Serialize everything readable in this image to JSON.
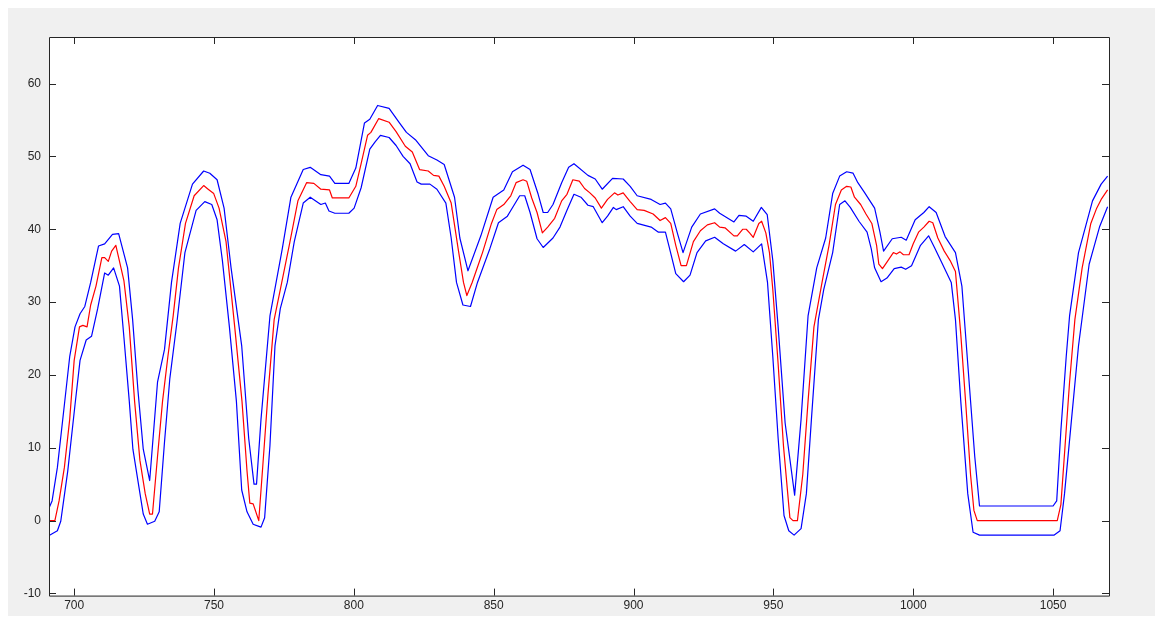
{
  "chart_data": {
    "type": "line",
    "xlim": [
      691,
      1070
    ],
    "ylim": [
      -10.3,
      66.4
    ],
    "xticks": [
      700,
      750,
      800,
      850,
      900,
      950,
      1000,
      1050
    ],
    "yticks": [
      -10,
      0,
      10,
      20,
      30,
      40,
      50,
      60
    ],
    "marker": "none",
    "series": [
      {
        "color": "#ff0000",
        "x": [
          691.2,
          693.1,
          694.6,
          696.5,
          698.4,
          700,
          701.9,
          703.1,
          704.6,
          705.9,
          707.8,
          709.9,
          710.9,
          712.2,
          713.4,
          714.9,
          717.8,
          719.7,
          721.6,
          723.5,
          725.4,
          727,
          728,
          729.8,
          731.6,
          733.5,
          735.4,
          737.3,
          739.8,
          742.9,
          746.3,
          747.9,
          749.9,
          751.8,
          754.3,
          757.4,
          760,
          761.8,
          762.8,
          764,
          766,
          767.4,
          769.3,
          771.5,
          773.7,
          776.9,
          780,
          783.1,
          785.7,
          788.2,
          791.3,
          792.3,
          798.2,
          800.7,
          802.6,
          804.9,
          806.1,
          808.9,
          812.6,
          815.1,
          818.4,
          820.9,
          823.5,
          826.6,
          828.5,
          830.4,
          832.3,
          834.8,
          837.3,
          839.2,
          840.4,
          842.3,
          846,
          849.2,
          851.1,
          853.6,
          856.1,
          858,
          860.5,
          861.8,
          863.6,
          865.5,
          867.4,
          869.3,
          871.8,
          874.3,
          876.2,
          878.3,
          880.6,
          882.5,
          884.4,
          886.3,
          888.5,
          890.7,
          893.2,
          894.4,
          896.3,
          898.8,
          901.3,
          903.8,
          907,
          909.5,
          911.4,
          913.3,
          915.1,
          917,
          918.9,
          921.4,
          923.9,
          926.4,
          929,
          930.8,
          932.7,
          935.9,
          937.1,
          939,
          940.3,
          941.5,
          942.8,
          944.8,
          945.8,
          947.3,
          948.6,
          949.8,
          951.7,
          953.6,
          955.9,
          957,
          958.6,
          960.5,
          962.4,
          964.5,
          967.4,
          969.9,
          972.2,
          974.3,
          976.2,
          977.7,
          979,
          981.2,
          983.1,
          985.2,
          986.9,
          987.7,
          989,
          990.6,
          992.9,
          994,
          995.3,
          996.5,
          998.5,
          1000,
          1001.9,
          1003.8,
          1005.7,
          1007,
          1008.8,
          1011.1,
          1013.2,
          1015.1,
          1017,
          1018.9,
          1020.5,
          1021.7,
          1022.9,
          1051.5,
          1052.8,
          1054.3,
          1055.9,
          1057.8,
          1060.4,
          1063.5,
          1065.6,
          1067.2,
          1069.5
        ],
        "values": [
          0,
          0,
          2.7,
          7.3,
          13.9,
          22,
          26.6,
          26.8,
          26.6,
          29.6,
          32.2,
          36.1,
          36.1,
          35.6,
          37,
          37.8,
          32.9,
          26.6,
          16.4,
          8.3,
          3.7,
          0.9,
          0.9,
          8.8,
          16.4,
          22.5,
          28.1,
          34.7,
          40.8,
          44.6,
          46,
          45.5,
          44.9,
          42.9,
          38.3,
          26.6,
          16.4,
          6.8,
          2.4,
          2.3,
          0,
          7.3,
          17.4,
          27.6,
          31.7,
          37.8,
          43.9,
          46.4,
          46.3,
          45.5,
          45.4,
          44.3,
          44.3,
          45.9,
          49,
          52.9,
          53.3,
          55.2,
          54.7,
          53.4,
          51.4,
          50.6,
          48.2,
          48,
          47.4,
          47.3,
          45.9,
          43.6,
          37.3,
          32.7,
          30.9,
          32.7,
          36.8,
          40.8,
          42.7,
          43.4,
          44.6,
          46.4,
          46.8,
          46.6,
          44.3,
          42.3,
          39.5,
          40.3,
          41.5,
          43.9,
          44.8,
          46.8,
          46.6,
          45.6,
          45,
          44.3,
          42.9,
          44.1,
          45,
          44.7,
          45,
          43.8,
          42.7,
          42.6,
          42.1,
          41.2,
          41.6,
          40.8,
          37.8,
          35,
          35,
          38.3,
          39.8,
          40.6,
          40.9,
          40.3,
          40.2,
          39.1,
          39.1,
          40,
          40,
          39.5,
          38.9,
          40.8,
          41.1,
          39.5,
          36.8,
          31.7,
          21.5,
          10.3,
          0.4,
          0,
          0,
          6.3,
          16.4,
          26.6,
          32.7,
          37.8,
          43.4,
          45.4,
          45.9,
          45.8,
          44.4,
          43.4,
          42.1,
          40.8,
          37.8,
          35.2,
          34.6,
          35.5,
          36.8,
          36.6,
          36.9,
          36.5,
          36.5,
          38,
          39.6,
          40.3,
          41.1,
          40.9,
          38.8,
          37,
          35.7,
          34.2,
          25.6,
          15.4,
          6.3,
          1.4,
          0,
          0,
          2.2,
          10.3,
          19,
          27.6,
          34.7,
          40.8,
          42.9,
          44.1,
          45.4
        ]
      },
      {
        "color": "#0000ff",
        "x": [
          691.2,
          692.1,
          694,
          696.5,
          698.4,
          700.3,
          702.1,
          703.8,
          705.9,
          708.7,
          710.9,
          713.7,
          715.9,
          719.1,
          720.9,
          722.8,
          724.7,
          727,
          729.8,
          732.3,
          734.8,
          737.9,
          742.3,
          746.3,
          748.5,
          751.1,
          753.6,
          756.1,
          759.9,
          762.4,
          764.3,
          765.2,
          766.8,
          770,
          774.4,
          777.5,
          781.9,
          784.4,
          788.2,
          791.3,
          793.2,
          798.2,
          800.7,
          803.8,
          805.7,
          808.5,
          812.6,
          816.3,
          818.8,
          822,
          826.6,
          829.7,
          832.3,
          836,
          837.9,
          840.8,
          845.4,
          849.8,
          853.6,
          856.7,
          860.5,
          863,
          865.9,
          867.7,
          869.3,
          871.2,
          874.3,
          876.8,
          878.7,
          883.7,
          886.3,
          888.8,
          892.5,
          896.3,
          898.8,
          901.3,
          906.3,
          909.5,
          911.4,
          913.3,
          915.8,
          917.7,
          920.8,
          923.9,
          929,
          930.8,
          935.9,
          937.7,
          940.3,
          942.8,
          945.7,
          947.8,
          949.8,
          951.7,
          954.2,
          957.6,
          959.9,
          962.4,
          965.5,
          968.7,
          971.2,
          973.7,
          976.2,
          978.5,
          980.2,
          982.5,
          986.2,
          988.1,
          989.4,
          992.5,
          995.7,
          997.5,
          1000.7,
          1003.8,
          1005.7,
          1008.2,
          1011.4,
          1015.1,
          1017.4,
          1019.5,
          1022,
          1023.7,
          1050,
          1051.3,
          1052.8,
          1054.7,
          1055.9,
          1059.1,
          1064.1,
          1067.2,
          1069.5
        ],
        "values": [
          1.9,
          2.7,
          7.3,
          15.9,
          22.5,
          26.6,
          28.4,
          29.4,
          32.7,
          37.7,
          38,
          39.3,
          39.4,
          34.7,
          27.6,
          17.9,
          9.8,
          5.5,
          19,
          23.5,
          32.7,
          40.8,
          46.2,
          48,
          47.7,
          46.8,
          42.9,
          34.7,
          24,
          11.3,
          5,
          5,
          13.9,
          28.1,
          37.3,
          44.4,
          48.2,
          48.5,
          47.5,
          47.3,
          46.3,
          46.3,
          48.4,
          54.6,
          55.1,
          57,
          56.6,
          54.6,
          53.3,
          52.3,
          50.1,
          49.5,
          48.9,
          44.4,
          38.8,
          34.3,
          39.1,
          44.4,
          45.4,
          47.9,
          48.8,
          48.2,
          44.8,
          42.3,
          42.3,
          43.4,
          46.4,
          48.5,
          49,
          47.4,
          46.9,
          45.5,
          47,
          46.9,
          45.9,
          44.6,
          44.1,
          43.4,
          43.6,
          42.8,
          39.3,
          36.8,
          40.3,
          42.1,
          42.8,
          42.2,
          41,
          41.9,
          41.8,
          41.1,
          43,
          42,
          35.7,
          26.6,
          13.4,
          3.5,
          13.9,
          28.1,
          34.7,
          38.8,
          44.9,
          47.3,
          47.9,
          47.7,
          46.4,
          45.1,
          42.9,
          39.6,
          37,
          38.7,
          38.9,
          38.5,
          41.3,
          42.3,
          43.1,
          42.3,
          39,
          36.8,
          32.2,
          21.5,
          8.8,
          2,
          2,
          2.7,
          12.4,
          22.5,
          28.1,
          36.8,
          43.9,
          46.2,
          47.3
        ]
      },
      {
        "color": "#0000ff",
        "x": [
          691.2,
          694,
          695.2,
          697.7,
          700.3,
          702.1,
          704.3,
          706.2,
          708.4,
          710.9,
          712.2,
          714.1,
          716.2,
          717.8,
          719.7,
          721,
          722.9,
          724.7,
          726.2,
          728.8,
          730.4,
          732.3,
          734.2,
          736.7,
          739.6,
          743.6,
          746.7,
          749.2,
          751.1,
          753,
          755.5,
          758,
          759.9,
          761.8,
          764,
          766.8,
          768.1,
          770,
          771.8,
          773.7,
          776.2,
          778.7,
          781.9,
          784.4,
          788.2,
          789.8,
          791.1,
          793.2,
          798.2,
          800.1,
          802.6,
          805.7,
          807.6,
          809.5,
          812.6,
          815.1,
          817.6,
          820.1,
          822.6,
          824.1,
          827.2,
          829.7,
          832.9,
          834.8,
          836.7,
          839,
          841.7,
          844.2,
          848.6,
          851.7,
          854.9,
          859.3,
          861.1,
          863,
          865.5,
          867.7,
          871.2,
          873.7,
          876.2,
          878.7,
          881.2,
          883.7,
          885.6,
          888.8,
          890.7,
          892.8,
          893.8,
          896.3,
          898.8,
          901.3,
          906.3,
          908.9,
          911.4,
          912.6,
          915.1,
          917.9,
          920.2,
          922.7,
          925.8,
          929,
          932.1,
          936.5,
          939.6,
          942.8,
          945.8,
          947.9,
          949.8,
          951.7,
          953.8,
          955.5,
          957.4,
          959.9,
          961.8,
          963.6,
          966.1,
          968,
          971.2,
          973.7,
          975.6,
          977.5,
          980.6,
          983.5,
          985,
          986.2,
          988.5,
          990.6,
          993.2,
          995.7,
          997.3,
          999.4,
          1002.6,
          1005.5,
          1007.6,
          1010.1,
          1013.6,
          1015.1,
          1017,
          1019.5,
          1021.4,
          1023.7,
          1050.3,
          1052.5,
          1054.1,
          1056.6,
          1059.1,
          1062.9,
          1066.6,
          1069.5
        ],
        "values": [
          -2,
          -1.4,
          -0.1,
          6.8,
          15.9,
          22,
          24.8,
          25.3,
          29.1,
          34,
          33.7,
          34.7,
          32.2,
          25.1,
          16.4,
          9.8,
          5.2,
          0.9,
          -0.5,
          -0.1,
          1.2,
          10.8,
          19.5,
          27.1,
          36.8,
          42.6,
          43.8,
          43.4,
          41.3,
          35.7,
          26.6,
          16.4,
          4.2,
          1.2,
          -0.5,
          -0.9,
          0.4,
          10.3,
          24,
          29.1,
          32.7,
          38.3,
          43.6,
          44.4,
          43.4,
          43.6,
          42.5,
          42.2,
          42.2,
          42.9,
          45.7,
          51,
          52,
          52.9,
          52.6,
          51.5,
          50,
          49,
          46.5,
          46.2,
          46.2,
          45.5,
          43.6,
          38.8,
          32.7,
          29.6,
          29.4,
          32.7,
          37.3,
          40.9,
          41.8,
          44.6,
          44.6,
          42.3,
          38.7,
          37.5,
          38.8,
          40.3,
          42.6,
          44.8,
          44.4,
          43.3,
          43.1,
          40.9,
          41.8,
          43,
          42.7,
          43.1,
          41.8,
          40.8,
          40.3,
          39.6,
          39.6,
          37.8,
          33.9,
          32.8,
          33.7,
          36.8,
          38.4,
          38.9,
          38,
          37,
          37.9,
          36.9,
          38,
          32.7,
          22.5,
          11.3,
          0.7,
          -1.4,
          -2,
          -1.1,
          3.7,
          13.9,
          27.6,
          31.7,
          36.8,
          43.4,
          43.9,
          43,
          41.1,
          39.6,
          37.3,
          34.7,
          32.8,
          33.3,
          34.6,
          34.8,
          34.5,
          35,
          37.8,
          39.1,
          37.5,
          35.5,
          32.7,
          27.6,
          16.4,
          3.7,
          -1.6,
          -2,
          -2,
          -1.4,
          3.7,
          13.9,
          24,
          35.2,
          40.3,
          43.1
        ]
      }
    ]
  }
}
